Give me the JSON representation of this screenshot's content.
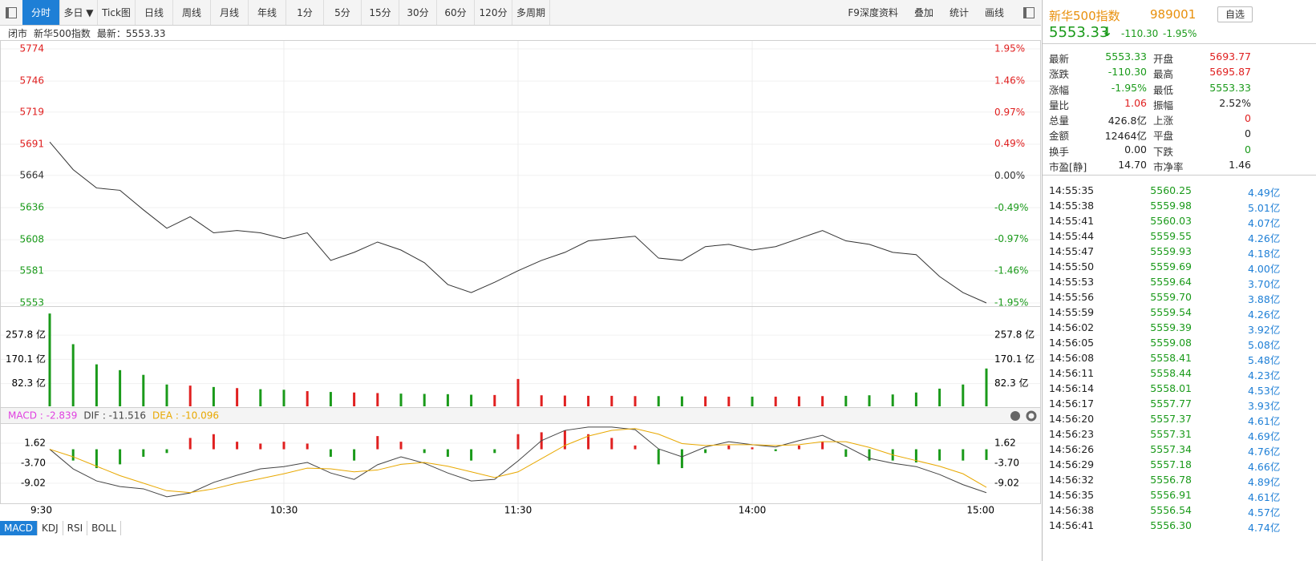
{
  "toolbar": {
    "left": [
      "分时",
      "多日 ▼",
      "Tick图",
      "日线",
      "周线",
      "月线",
      "年线",
      "1分",
      "5分",
      "15分",
      "30分",
      "60分",
      "120分",
      "多周期"
    ],
    "right": [
      "F9深度资料",
      "叠加",
      "统计",
      "画线"
    ]
  },
  "infobar": [
    "闭市",
    "新华500指数",
    "最新：5553.33"
  ],
  "chart_data": {
    "type": "line",
    "categories": [
      "9:30",
      null,
      null,
      null,
      null,
      null,
      null,
      null,
      null,
      null,
      "10:30",
      null,
      null,
      null,
      null,
      null,
      null,
      null,
      null,
      null,
      "11:30",
      null,
      null,
      null,
      null,
      null,
      null,
      null,
      null,
      null,
      "14:00",
      null,
      null,
      null,
      null,
      null,
      null,
      null,
      null,
      null,
      "15:00"
    ],
    "price": {
      "color": "#333333",
      "ylim": [
        5553,
        5774
      ],
      "yticks": [
        5774,
        5746,
        5719,
        5691,
        5664,
        5636,
        5608,
        5581,
        5553
      ],
      "y2lim": [
        -1.95,
        1.95
      ],
      "y2ticks": [
        {
          "value": 1.95,
          "label": "1.95%"
        },
        {
          "value": 1.46,
          "label": "1.46%"
        },
        {
          "value": 0.97,
          "label": "0.97%"
        },
        {
          "value": 0.49,
          "label": "0.49%"
        },
        {
          "value": 0,
          "label": "0.00%"
        },
        {
          "value": -0.49,
          "label": "-0.49%"
        },
        {
          "value": -0.97,
          "label": "-0.97%"
        },
        {
          "value": -1.46,
          "label": "-1.46%"
        },
        {
          "value": -1.95,
          "label": "-1.95%"
        }
      ],
      "values": [
        5693,
        5669,
        5653,
        5651,
        5634,
        5618,
        5628,
        5614,
        5616,
        5614,
        5609,
        5614,
        5590,
        5597,
        5606,
        5599,
        5588,
        5569,
        5562,
        5571,
        5581,
        5590,
        5597,
        5607,
        5609,
        5611,
        5592,
        5590,
        5602,
        5604,
        5599,
        5602,
        5609,
        5616,
        5607,
        5604,
        5597,
        5595,
        5576,
        5562,
        5553
      ]
    },
    "volume": {
      "ylim": [
        0,
        354
      ],
      "yticks": [
        {
          "value": 257.8,
          "label": "257.8 亿"
        },
        {
          "value": 170.1,
          "label": "170.1 亿"
        },
        {
          "value": 82.3,
          "label": "82.3 亿"
        }
      ],
      "values": [
        336,
        225,
        152,
        131,
        114,
        79,
        75,
        70,
        66,
        62,
        60,
        55,
        52,
        50,
        48,
        46,
        45,
        44,
        42,
        41,
        99,
        40,
        39,
        38,
        38,
        37,
        37,
        36,
        36,
        35,
        35,
        35,
        36,
        37,
        38,
        40,
        43,
        50,
        64,
        79,
        137
      ]
    },
    "macd": {
      "ylim": [
        -14.34,
        6.5
      ],
      "yticks": [
        1.62,
        {
          "value": -3.7,
          "label": "-3.70"
        },
        -9.02
      ],
      "legend": [
        {
          "text": "MACD : -2.839",
          "color": "#e040e0"
        },
        {
          "text": "DIF : -11.516",
          "color": "#444444"
        },
        {
          "text": "DEA : -10.096",
          "color": "#e8a800"
        }
      ],
      "hist": [
        0,
        -3,
        -5,
        -4,
        -2,
        -1,
        3,
        4,
        2,
        1.5,
        2,
        1.5,
        -2,
        -3,
        3.5,
        2,
        -1,
        -2,
        -3,
        -1,
        4,
        4.5,
        5,
        4,
        3,
        1,
        -4,
        -5,
        -1,
        1,
        0.5,
        -0.5,
        1,
        2,
        -2,
        -3,
        -3,
        -3.5,
        -3,
        -3,
        -2.839
      ],
      "dif": [
        0,
        -5.2,
        -8.4,
        -9.9,
        -10.5,
        -12.6,
        -11.6,
        -8.8,
        -6.9,
        -5.2,
        -4.6,
        -3.5,
        -6.3,
        -8,
        -4.1,
        -2,
        -3.7,
        -6.3,
        -8.4,
        -8,
        -3.1,
        2.3,
        5,
        5.9,
        5.9,
        5.2,
        0.1,
        -2,
        0.6,
        2,
        1.2,
        0.6,
        2.3,
        3.7,
        0.8,
        -2.4,
        -3.7,
        -4.6,
        -6.7,
        -9.4,
        -11.516
      ],
      "dea": [
        0,
        -2,
        -4.5,
        -7,
        -9,
        -11,
        -11.5,
        -10.5,
        -9,
        -7.8,
        -6.5,
        -5,
        -5.2,
        -6,
        -5.5,
        -4,
        -3.5,
        -4.5,
        -6,
        -7.5,
        -6,
        -2.5,
        1,
        3.5,
        5,
        5.5,
        4,
        1.5,
        1,
        1.2,
        1.2,
        1,
        1.2,
        2,
        2,
        0.5,
        -1.5,
        -3,
        -4.5,
        -6.5,
        -10.096
      ]
    }
  },
  "tabs": [
    "MACD",
    "KDJ",
    "RSI",
    "BOLL"
  ],
  "quote": {
    "name": "新华500指数",
    "code": "989001",
    "button": "自选",
    "price": "5553.33",
    "arrow": "↓",
    "change": "-110.30",
    "pct": "-1.95%"
  },
  "stats": [
    [
      "最新",
      "5553.33",
      "开盘",
      "5693.77"
    ],
    [
      "涨跌",
      "-110.30",
      "最高",
      "5695.87"
    ],
    [
      "涨幅",
      "-1.95%",
      "最低",
      "5553.33"
    ],
    [
      "量比",
      "1.06",
      "振幅",
      "2.52%"
    ],
    [
      "总量",
      "426.8亿",
      "上涨",
      "0"
    ],
    [
      "金额",
      "12464亿",
      "平盘",
      "0"
    ],
    [
      "换手",
      "0.00",
      "下跌",
      "0"
    ],
    [
      "市盈[静]",
      "14.70",
      "市净率",
      "1.46"
    ]
  ],
  "trades": [
    [
      "14:55:35",
      "5560.25",
      "4.49亿"
    ],
    [
      "14:55:38",
      "5559.98",
      "5.01亿"
    ],
    [
      "14:55:41",
      "5560.03",
      "4.07亿"
    ],
    [
      "14:55:44",
      "5559.55",
      "4.26亿"
    ],
    [
      "14:55:47",
      "5559.93",
      "4.18亿"
    ],
    [
      "14:55:50",
      "5559.69",
      "4.00亿"
    ],
    [
      "14:55:53",
      "5559.64",
      "3.70亿"
    ],
    [
      "14:55:56",
      "5559.70",
      "3.88亿"
    ],
    [
      "14:55:59",
      "5559.54",
      "4.26亿"
    ],
    [
      "14:56:02",
      "5559.39",
      "3.92亿"
    ],
    [
      "14:56:05",
      "5559.08",
      "5.08亿"
    ],
    [
      "14:56:08",
      "5558.41",
      "5.48亿"
    ],
    [
      "14:56:11",
      "5558.44",
      "4.23亿"
    ],
    [
      "14:56:14",
      "5558.01",
      "4.53亿"
    ],
    [
      "14:56:17",
      "5557.77",
      "3.93亿"
    ],
    [
      "14:56:20",
      "5557.37",
      "4.61亿"
    ],
    [
      "14:56:23",
      "5557.31",
      "4.69亿"
    ],
    [
      "14:56:26",
      "5557.34",
      "4.76亿"
    ],
    [
      "14:56:29",
      "5557.18",
      "4.66亿"
    ],
    [
      "14:56:32",
      "5556.78",
      "4.89亿"
    ],
    [
      "14:56:35",
      "5556.91",
      "4.61亿"
    ],
    [
      "14:56:38",
      "5556.54",
      "4.57亿"
    ],
    [
      "14:56:41",
      "5556.30",
      "4.74亿"
    ]
  ]
}
